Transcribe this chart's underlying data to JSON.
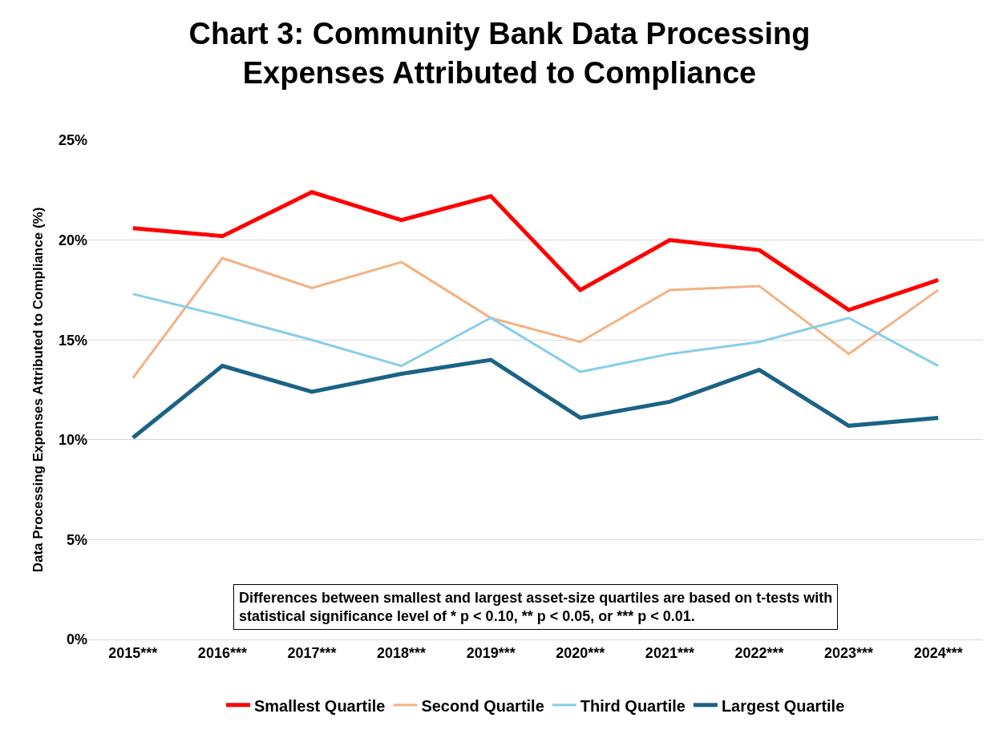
{
  "chart_data": {
    "type": "line",
    "title": "Chart 3: Community Bank Data Processing\nExpenses Attributed to Compliance",
    "ylabel": "Data Processing Expenses Attributed to Compliance (%)",
    "categories": [
      "2015***",
      "2016***",
      "2017***",
      "2018***",
      "2019***",
      "2020***",
      "2021***",
      "2022***",
      "2023***",
      "2024***"
    ],
    "series": [
      {
        "name": "Smallest Quartile",
        "color": "#ff0000",
        "values": [
          20.6,
          20.2,
          22.4,
          21.0,
          22.2,
          17.5,
          20.0,
          19.5,
          16.5,
          18.0
        ]
      },
      {
        "name": "Second Quartile",
        "color": "#f4b183",
        "values": [
          13.1,
          19.1,
          17.6,
          18.9,
          16.1,
          14.9,
          17.5,
          17.7,
          14.3,
          17.5
        ]
      },
      {
        "name": "Third Quartile",
        "color": "#87ceeb",
        "values": [
          17.3,
          16.2,
          15.0,
          13.7,
          16.1,
          13.4,
          14.3,
          14.9,
          16.1,
          13.7
        ]
      },
      {
        "name": "Largest Quartile",
        "color": "#1b6286",
        "values": [
          10.1,
          13.7,
          12.4,
          13.3,
          14.0,
          11.1,
          11.9,
          13.5,
          10.7,
          11.1
        ]
      }
    ],
    "ylim": [
      0,
      25
    ],
    "yticks": [
      {
        "value": 0,
        "label": "0%"
      },
      {
        "value": 5,
        "label": "5%"
      },
      {
        "value": 10,
        "label": "10%"
      },
      {
        "value": 15,
        "label": "15%"
      },
      {
        "value": 20,
        "label": "20%"
      },
      {
        "value": 25,
        "label": "25%"
      }
    ],
    "grid": "y",
    "legend": "bottom",
    "marker": "none",
    "line_style": "solid",
    "annotations": [
      "Differences between smallest and largest asset-size quartiles are based on t-tests with\nstatistical significance level of * p < 0.10, ** p < 0.05, or *** p < 0.01."
    ]
  }
}
